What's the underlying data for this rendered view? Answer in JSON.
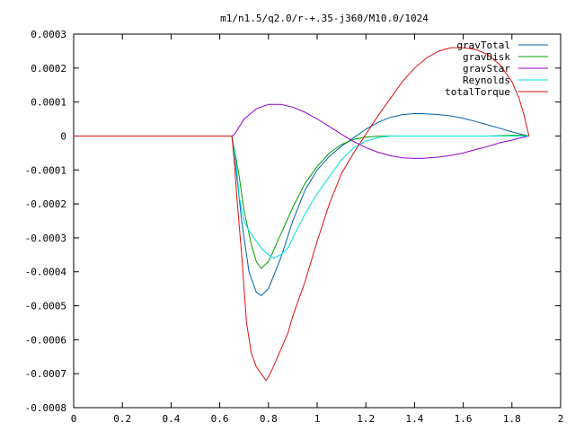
{
  "chart_data": {
    "type": "line",
    "title": "m1/n1.5/q2.0/r-+.35-j360/M10.0/1024",
    "xlabel": "",
    "ylabel": "",
    "xlim": [
      0,
      2
    ],
    "ylim": [
      -0.0008,
      0.0003
    ],
    "x_ticks": [
      "0",
      "0.2",
      "0.4",
      "0.6",
      "0.8",
      "1",
      "1.2",
      "1.4",
      "1.6",
      "1.8",
      "2"
    ],
    "y_ticks": [
      "0.0003",
      "0.0002",
      "0.0001",
      "0",
      "-0.0001",
      "-0.0002",
      "-0.0003",
      "-0.0004",
      "-0.0005",
      "-0.0006",
      "-0.0007",
      "-0.0008"
    ],
    "legend_position": "top-right",
    "grid": false,
    "series": [
      {
        "name": "gravTotal",
        "color": "#0060ad",
        "x": [
          0,
          0.65,
          0.66,
          0.67,
          0.69,
          0.72,
          0.75,
          0.77,
          0.8,
          0.85,
          0.9,
          0.95,
          1.0,
          1.05,
          1.1,
          1.15,
          1.2,
          1.25,
          1.3,
          1.35,
          1.4,
          1.43,
          1.5,
          1.55,
          1.6,
          1.65,
          1.7,
          1.75,
          1.8,
          1.85,
          1.87
        ],
        "y": [
          0,
          0,
          -5e-05,
          -0.00012,
          -0.00025,
          -0.0004,
          -0.00046,
          -0.00047,
          -0.00045,
          -0.00036,
          -0.00025,
          -0.00016,
          -0.0001,
          -6e-05,
          -3e-05,
          -5e-06,
          2e-05,
          4e-05,
          5.5e-05,
          6.3e-05,
          6.6e-05,
          6.6e-05,
          6.3e-05,
          5.9e-05,
          5.2e-05,
          4.3e-05,
          3.3e-05,
          2.3e-05,
          1.2e-05,
          3e-06,
          0
        ]
      },
      {
        "name": "gravDisk",
        "color": "#009e00",
        "x": [
          0,
          0.65,
          0.66,
          0.68,
          0.7,
          0.73,
          0.75,
          0.77,
          0.8,
          0.85,
          0.9,
          0.95,
          1.0,
          1.05,
          1.1,
          1.15,
          1.2,
          1.25,
          1.3,
          1.4,
          1.5,
          1.6,
          1.7,
          1.75,
          1.8,
          1.85,
          1.87
        ],
        "y": [
          0,
          0,
          -4e-05,
          -0.00012,
          -0.00022,
          -0.00032,
          -0.00037,
          -0.00039,
          -0.00037,
          -0.00029,
          -0.00021,
          -0.00014,
          -9e-05,
          -5e-05,
          -2.5e-05,
          -1e-05,
          -3e-06,
          -1e-06,
          0,
          0,
          0,
          0,
          0,
          1e-06,
          2e-06,
          2e-06,
          0
        ]
      },
      {
        "name": "gravStar",
        "color": "#9400d3",
        "x": [
          0,
          0.65,
          0.66,
          0.7,
          0.75,
          0.8,
          0.85,
          0.9,
          0.95,
          1.0,
          1.05,
          1.1,
          1.15,
          1.2,
          1.25,
          1.3,
          1.35,
          1.4,
          1.43,
          1.5,
          1.55,
          1.6,
          1.65,
          1.7,
          1.75,
          1.8,
          1.85,
          1.87
        ],
        "y": [
          0,
          0,
          5e-06,
          5e-05,
          8e-05,
          9.3e-05,
          9.3e-05,
          8.5e-05,
          7e-05,
          5e-05,
          2.8e-05,
          5e-06,
          -1.6e-05,
          -3.4e-05,
          -4.8e-05,
          -5.8e-05,
          -6.4e-05,
          -6.6e-05,
          -6.6e-05,
          -6.2e-05,
          -5.7e-05,
          -5e-05,
          -4e-05,
          -3.1e-05,
          -2e-05,
          -1.2e-05,
          -3e-06,
          0
        ]
      },
      {
        "name": "Reynolds",
        "color": "#00e0e0",
        "x": [
          0,
          0.65,
          0.66,
          0.67,
          0.68,
          0.7,
          0.72,
          0.75,
          0.77,
          0.8,
          0.82,
          0.85,
          0.88,
          0.9,
          0.95,
          1.0,
          1.05,
          1.1,
          1.15,
          1.2,
          1.25,
          1.3,
          1.4,
          1.5,
          1.6,
          1.7,
          1.8,
          1.85,
          1.87
        ],
        "y": [
          0,
          0,
          -5e-05,
          -0.0001,
          -0.00018,
          -0.00025,
          -0.00028,
          -0.00031,
          -0.00033,
          -0.00035,
          -0.00036,
          -0.00035,
          -0.00033,
          -0.0003,
          -0.00023,
          -0.00017,
          -0.00012,
          -7e-05,
          -3.5e-05,
          -1.5e-05,
          -5e-06,
          0,
          0,
          0,
          0,
          0,
          0,
          0,
          0
        ]
      },
      {
        "name": "totalTorque",
        "color": "#e01010",
        "x": [
          0,
          0.65,
          0.66,
          0.67,
          0.69,
          0.71,
          0.73,
          0.75,
          0.77,
          0.79,
          0.8,
          0.82,
          0.85,
          0.88,
          0.9,
          0.95,
          1.0,
          1.05,
          1.1,
          1.15,
          1.2,
          1.25,
          1.3,
          1.35,
          1.4,
          1.45,
          1.5,
          1.55,
          1.6,
          1.65,
          1.7,
          1.75,
          1.8,
          1.83,
          1.85,
          1.87
        ],
        "y": [
          0,
          0,
          -8e-05,
          -0.00018,
          -0.00035,
          -0.00055,
          -0.00064,
          -0.00068,
          -0.0007,
          -0.00072,
          -0.00071,
          -0.00068,
          -0.00063,
          -0.00058,
          -0.00053,
          -0.00043,
          -0.00031,
          -0.0002,
          -0.00011,
          -5e-05,
          5e-06,
          6e-05,
          0.00011,
          0.00016,
          0.0002,
          0.00023,
          0.00025,
          0.00026,
          0.00026,
          0.000255,
          0.00024,
          0.00021,
          0.00016,
          0.00011,
          6e-05,
          0
        ]
      }
    ]
  }
}
